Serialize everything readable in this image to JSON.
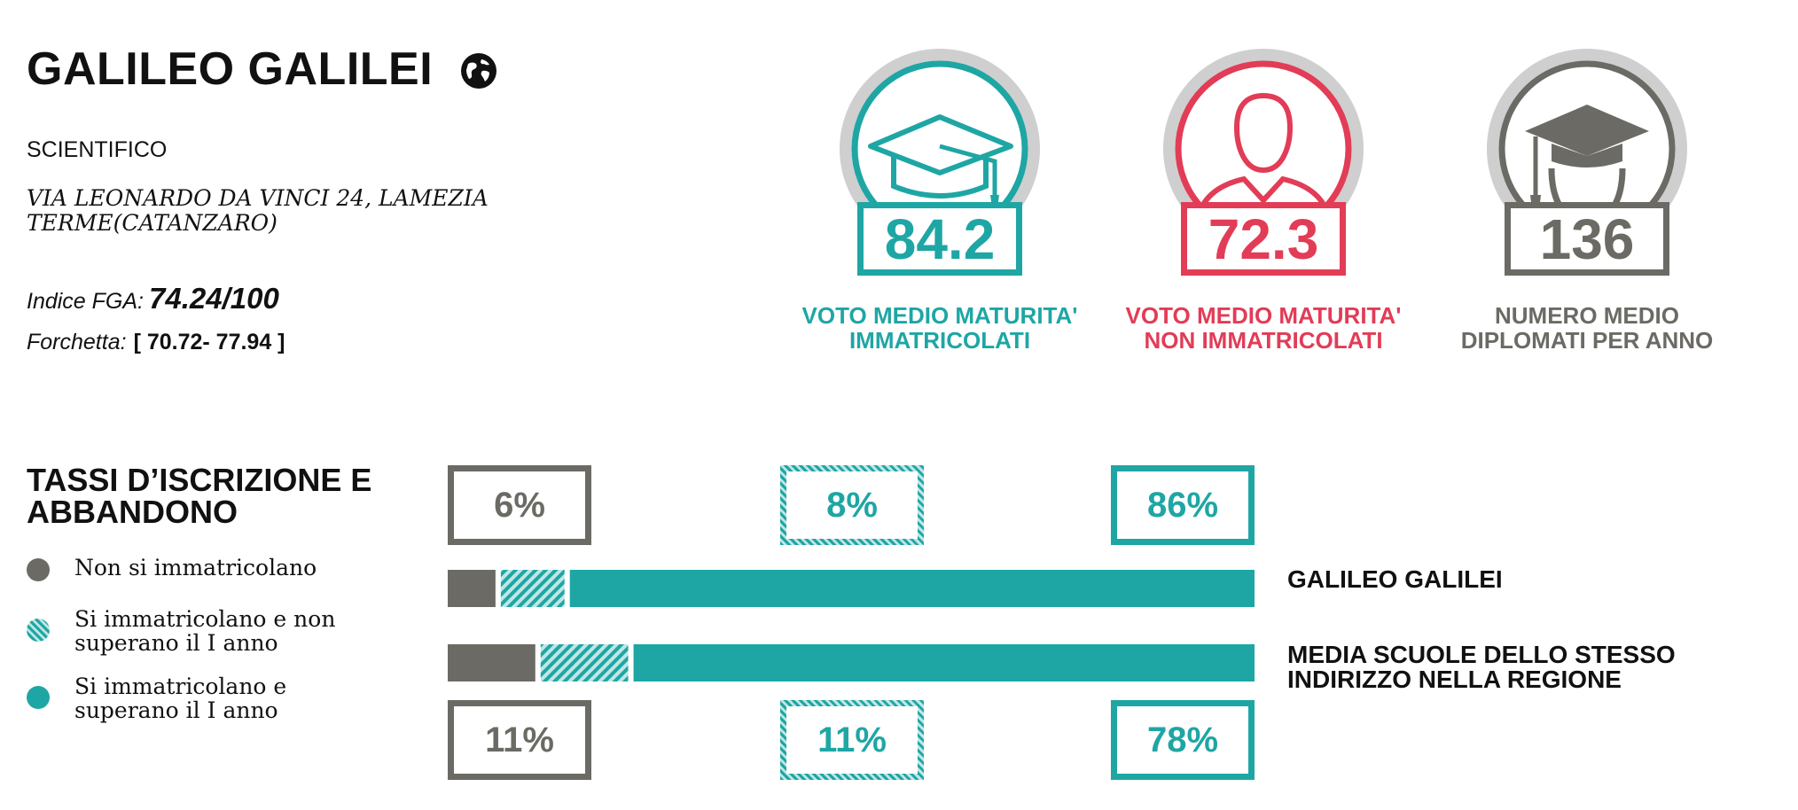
{
  "school": {
    "name": "GALILEO GALILEI",
    "type": "SCIENTIFICO",
    "address": "VIA LEONARDO DA VINCI 24, LAMEZIA TERME(CATANZARO)",
    "index_label": "Indice FGA:",
    "index_value": "74.24/100",
    "fork_label": "Forchetta:",
    "fork_value": "[ 70.72- 77.94 ]",
    "globe_icon": "globe-icon"
  },
  "stats": [
    {
      "value": "84.2",
      "caption": "VOTO MEDIO MATURITA' IMMATRICOLATI",
      "color": "#1ea6a4",
      "icon": "graduation-cap-icon"
    },
    {
      "value": "72.3",
      "caption": "VOTO MEDIO MATURITA' NON IMMATRICOLATI",
      "color": "#e23c57",
      "icon": "person-icon"
    },
    {
      "value": "136",
      "caption": "NUMERO MEDIO DIPLOMATI PER ANNO",
      "color": "#6b6a64",
      "icon": "graduate-icon"
    }
  ],
  "colors": {
    "teal": "#1ea6a4",
    "teal_light": "#bfe6e5",
    "gray": "#6b6a64",
    "ring_gray": "#cfcfcf",
    "red": "#e23c57"
  },
  "rates": {
    "title": "TASSI D’ISCRIZIONE E ABBANDONO",
    "legend": [
      "Non si immatricolano",
      "Si immatricolano e non superano il I anno",
      "Si immatricolano e superano il I anno"
    ]
  },
  "chart_data": {
    "type": "bar",
    "orientation": "horizontal",
    "stacked": true,
    "categories": [
      "GALILEO GALILEI",
      "MEDIA SCUOLE DELLO STESSO INDIRIZZO NELLA REGIONE"
    ],
    "series": [
      {
        "name": "Non si immatricolano",
        "values": [
          6,
          11
        ],
        "labels": [
          "6%",
          "11%"
        ],
        "color": "#6b6a64"
      },
      {
        "name": "Si immatricolano e non superano il I anno",
        "values": [
          8,
          11
        ],
        "labels": [
          "8%",
          "11%"
        ],
        "color": "#1ea6a4",
        "pattern": "hatch"
      },
      {
        "name": "Si immatricolano e superano il I anno",
        "values": [
          86,
          78
        ],
        "labels": [
          "86%",
          "78%"
        ],
        "color": "#1ea6a4"
      }
    ],
    "xlim": [
      0,
      100
    ]
  }
}
